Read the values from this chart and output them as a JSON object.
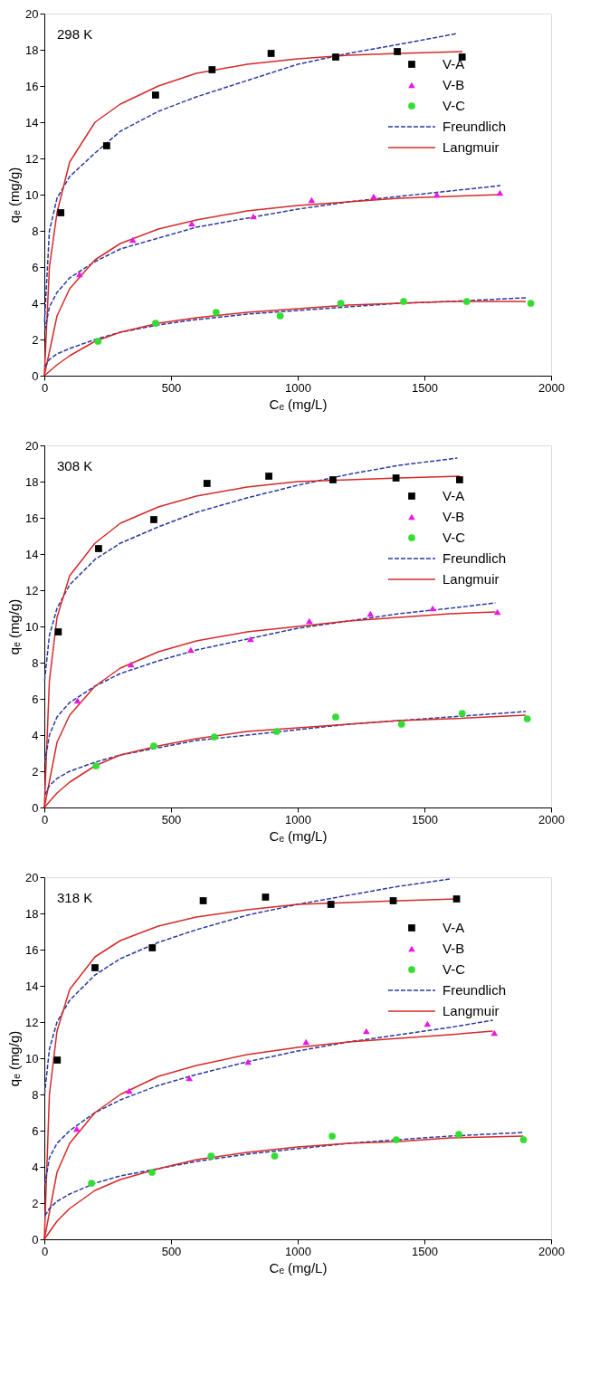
{
  "chart_data": [
    {
      "type": "scatter",
      "annotations": [
        "298 K"
      ],
      "xlabel": "Cₑ (mg/L)",
      "ylabel": "qₑ (mg/g)",
      "xlim": [
        0,
        2000
      ],
      "ylim": [
        0,
        20
      ],
      "xticks": [
        0,
        500,
        1000,
        1500,
        2000
      ],
      "yticks": [
        0,
        2,
        4,
        6,
        8,
        10,
        12,
        14,
        16,
        18,
        20
      ],
      "grid": false,
      "legend": "top right",
      "series": [
        {
          "name": "V-A",
          "marker": "square",
          "color": "#000000",
          "x": [
            65,
            246,
            439,
            662,
            895,
            1150,
            1393,
            1649
          ],
          "values": [
            9.0,
            12.7,
            15.5,
            16.9,
            17.8,
            17.6,
            17.9,
            17.6
          ]
        },
        {
          "name": "V-B",
          "marker": "triangle",
          "color": "#e619e6",
          "x": [
            139,
            349,
            582,
            825,
            1055,
            1300,
            1549,
            1798
          ],
          "values": [
            5.6,
            7.5,
            8.4,
            8.8,
            9.7,
            9.9,
            10.0,
            10.1
          ]
        },
        {
          "name": "V-C",
          "marker": "circle",
          "color": "#33dd33",
          "x": [
            212,
            439,
            678,
            931,
            1170,
            1418,
            1667,
            1920
          ],
          "values": [
            1.9,
            2.9,
            3.5,
            3.3,
            4.0,
            4.1,
            4.1,
            4.0
          ]
        },
        {
          "name": "Freundlich",
          "type": "line",
          "line_style": "dashed",
          "color": "#2b3a9c",
          "x": [
            1,
            20,
            50,
            100,
            200,
            300,
            450,
            600,
            800,
            1000,
            1200,
            1400,
            1630
          ],
          "values": [
            3,
            8,
            9.8,
            11,
            12.3,
            13.5,
            14.6,
            15.4,
            16.3,
            17.2,
            17.8,
            18.3,
            18.9
          ]
        },
        {
          "name": "Langmuir",
          "type": "line",
          "line_style": "solid",
          "color": "#d42a2a",
          "x": [
            0,
            20,
            50,
            100,
            200,
            300,
            450,
            600,
            800,
            1000,
            1200,
            1400,
            1650
          ],
          "values": [
            0,
            6,
            9,
            11.8,
            14,
            15,
            16,
            16.7,
            17.2,
            17.5,
            17.7,
            17.8,
            17.9
          ]
        },
        {
          "type": "line",
          "line_style": "dashed",
          "color": "#2b3a9c",
          "x": [
            2,
            20,
            50,
            100,
            200,
            300,
            450,
            600,
            800,
            1000,
            1200,
            1400,
            1600,
            1800
          ],
          "values": [
            2.5,
            3.8,
            4.6,
            5.4,
            6.3,
            7.0,
            7.6,
            8.2,
            8.7,
            9.2,
            9.6,
            9.9,
            10.2,
            10.5
          ]
        },
        {
          "type": "line",
          "line_style": "solid",
          "color": "#d42a2a",
          "x": [
            0,
            50,
            100,
            200,
            300,
            450,
            600,
            800,
            1000,
            1200,
            1400,
            1600,
            1800
          ],
          "values": [
            0,
            3.3,
            4.8,
            6.4,
            7.3,
            8.1,
            8.6,
            9.1,
            9.4,
            9.6,
            9.8,
            9.9,
            10.0
          ]
        },
        {
          "type": "line",
          "line_style": "dashed",
          "color": "#2b3a9c",
          "x": [
            2,
            20,
            50,
            100,
            200,
            300,
            450,
            600,
            800,
            1000,
            1200,
            1400,
            1600,
            1900
          ],
          "values": [
            0.5,
            0.9,
            1.2,
            1.5,
            2.0,
            2.4,
            2.8,
            3.1,
            3.4,
            3.6,
            3.8,
            4.0,
            4.1,
            4.3
          ]
        },
        {
          "type": "line",
          "line_style": "solid",
          "color": "#d42a2a",
          "x": [
            0,
            50,
            100,
            200,
            300,
            450,
            600,
            800,
            1000,
            1200,
            1400,
            1600,
            1900
          ],
          "values": [
            0,
            0.6,
            1.1,
            1.9,
            2.4,
            2.9,
            3.2,
            3.5,
            3.7,
            3.9,
            4.0,
            4.1,
            4.1
          ]
        }
      ]
    },
    {
      "type": "scatter",
      "annotations": [
        "308 K"
      ],
      "xlabel": "Cₑ (mg/L)",
      "ylabel": "qₑ (mg/g)",
      "xlim": [
        0,
        2000
      ],
      "ylim": [
        0,
        20
      ],
      "xticks": [
        0,
        500,
        1000,
        1500,
        2000
      ],
      "yticks": [
        0,
        2,
        4,
        6,
        8,
        10,
        12,
        14,
        16,
        18,
        20
      ],
      "grid": false,
      "legend": "top right",
      "series": [
        {
          "name": "V-A",
          "marker": "square",
          "color": "#000000",
          "x": [
            55,
            214,
            432,
            642,
            886,
            1139,
            1388,
            1639
          ],
          "values": [
            9.7,
            14.3,
            15.9,
            17.9,
            18.3,
            18.1,
            18.2,
            18.1
          ]
        },
        {
          "name": "V-B",
          "marker": "triangle",
          "color": "#e619e6",
          "x": [
            131,
            342,
            578,
            814,
            1046,
            1287,
            1533,
            1788
          ],
          "values": [
            5.9,
            7.9,
            8.7,
            9.3,
            10.3,
            10.7,
            11.0,
            10.8
          ]
        },
        {
          "name": "V-C",
          "marker": "circle",
          "color": "#33dd33",
          "x": [
            204,
            432,
            671,
            917,
            1150,
            1410,
            1649,
            1906
          ],
          "values": [
            2.3,
            3.4,
            3.9,
            4.2,
            5.0,
            4.6,
            5.2,
            4.9
          ]
        },
        {
          "name": "Freundlich",
          "type": "line",
          "line_style": "dashed",
          "color": "#2b3a9c",
          "x": [
            1,
            20,
            50,
            100,
            200,
            300,
            450,
            600,
            800,
            1000,
            1200,
            1400,
            1630
          ],
          "values": [
            7,
            9.5,
            11,
            12.3,
            13.7,
            14.6,
            15.5,
            16.3,
            17.1,
            17.8,
            18.4,
            18.9,
            19.3
          ]
        },
        {
          "name": "Langmuir",
          "type": "line",
          "line_style": "solid",
          "color": "#d42a2a",
          "x": [
            0,
            20,
            50,
            100,
            200,
            300,
            450,
            600,
            800,
            1000,
            1200,
            1400,
            1640
          ],
          "values": [
            0,
            7,
            10.5,
            12.8,
            14.6,
            15.7,
            16.6,
            17.2,
            17.7,
            18.0,
            18.1,
            18.2,
            18.3
          ]
        },
        {
          "type": "line",
          "line_style": "dashed",
          "color": "#2b3a9c",
          "x": [
            2,
            20,
            50,
            100,
            200,
            300,
            450,
            600,
            800,
            1000,
            1200,
            1400,
            1600,
            1780
          ],
          "values": [
            2.5,
            4,
            5,
            5.8,
            6.7,
            7.4,
            8.1,
            8.7,
            9.3,
            9.9,
            10.3,
            10.7,
            11.0,
            11.3
          ]
        },
        {
          "type": "line",
          "line_style": "solid",
          "color": "#d42a2a",
          "x": [
            0,
            50,
            100,
            200,
            300,
            450,
            600,
            800,
            1000,
            1200,
            1400,
            1600,
            1780
          ],
          "values": [
            0,
            3.6,
            5.1,
            6.7,
            7.7,
            8.6,
            9.2,
            9.7,
            10.0,
            10.3,
            10.5,
            10.7,
            10.8
          ]
        },
        {
          "type": "line",
          "line_style": "dashed",
          "color": "#2b3a9c",
          "x": [
            2,
            20,
            50,
            100,
            200,
            300,
            450,
            600,
            800,
            1000,
            1200,
            1400,
            1600,
            1900
          ],
          "values": [
            0.7,
            1.2,
            1.6,
            2.0,
            2.5,
            2.9,
            3.3,
            3.7,
            4.0,
            4.3,
            4.6,
            4.8,
            5.0,
            5.3
          ]
        },
        {
          "type": "line",
          "line_style": "solid",
          "color": "#d42a2a",
          "x": [
            0,
            50,
            100,
            200,
            300,
            450,
            600,
            800,
            1000,
            1200,
            1400,
            1600,
            1900
          ],
          "values": [
            0,
            0.8,
            1.4,
            2.3,
            2.9,
            3.4,
            3.8,
            4.2,
            4.4,
            4.6,
            4.8,
            4.9,
            5.1
          ]
        }
      ]
    },
    {
      "type": "scatter",
      "annotations": [
        "318 K"
      ],
      "xlabel": "Cₑ (mg/L)",
      "ylabel": "qₑ (mg/g)",
      "xlim": [
        0,
        2000
      ],
      "ylim": [
        0,
        20
      ],
      "xticks": [
        0,
        500,
        1000,
        1500,
        2000
      ],
      "yticks": [
        0,
        2,
        4,
        6,
        8,
        10,
        12,
        14,
        16,
        18,
        20
      ],
      "grid": false,
      "legend": "top right",
      "series": [
        {
          "name": "V-A",
          "marker": "square",
          "color": "#000000",
          "x": [
            51,
            200,
            426,
            627,
            873,
            1131,
            1377,
            1627
          ],
          "values": [
            9.9,
            15.0,
            16.1,
            18.7,
            18.9,
            18.5,
            18.7,
            18.8
          ]
        },
        {
          "name": "V-B",
          "marker": "triangle",
          "color": "#e619e6",
          "x": [
            128,
            335,
            572,
            804,
            1033,
            1271,
            1512,
            1776
          ],
          "values": [
            6.1,
            8.2,
            8.9,
            9.8,
            10.9,
            11.5,
            11.9,
            11.4
          ]
        },
        {
          "name": "V-C",
          "marker": "circle",
          "color": "#33dd33",
          "x": [
            186,
            425,
            658,
            909,
            1136,
            1389,
            1636,
            1891
          ],
          "values": [
            3.1,
            3.7,
            4.6,
            4.6,
            5.7,
            5.5,
            5.8,
            5.5
          ]
        },
        {
          "name": "Freundlich",
          "type": "line",
          "line_style": "dashed",
          "color": "#2b3a9c",
          "x": [
            1,
            20,
            50,
            100,
            200,
            300,
            450,
            600,
            800,
            1000,
            1200,
            1400,
            1600
          ],
          "values": [
            8,
            10.5,
            12,
            13.2,
            14.6,
            15.5,
            16.4,
            17.1,
            17.9,
            18.5,
            19.0,
            19.5,
            19.9
          ]
        },
        {
          "name": "Langmuir",
          "type": "line",
          "line_style": "solid",
          "color": "#d42a2a",
          "x": [
            0,
            20,
            50,
            100,
            200,
            300,
            450,
            600,
            800,
            1000,
            1200,
            1400,
            1630
          ],
          "values": [
            0,
            8,
            11.5,
            13.8,
            15.6,
            16.5,
            17.3,
            17.8,
            18.2,
            18.5,
            18.6,
            18.7,
            18.8
          ]
        },
        {
          "type": "line",
          "line_style": "dashed",
          "color": "#2b3a9c",
          "x": [
            2,
            20,
            50,
            100,
            200,
            300,
            450,
            600,
            800,
            1000,
            1200,
            1400,
            1600,
            1770
          ],
          "values": [
            3,
            4.5,
            5.3,
            6.0,
            7.0,
            7.7,
            8.5,
            9.1,
            9.8,
            10.4,
            10.9,
            11.3,
            11.7,
            12.1
          ]
        },
        {
          "type": "line",
          "line_style": "solid",
          "color": "#d42a2a",
          "x": [
            0,
            50,
            100,
            200,
            300,
            450,
            600,
            800,
            1000,
            1200,
            1400,
            1600,
            1770
          ],
          "values": [
            0,
            3.7,
            5.3,
            7.0,
            8.0,
            9.0,
            9.6,
            10.2,
            10.6,
            10.9,
            11.1,
            11.3,
            11.5
          ]
        },
        {
          "type": "line",
          "line_style": "dashed",
          "color": "#2b3a9c",
          "x": [
            2,
            20,
            50,
            100,
            200,
            300,
            450,
            600,
            800,
            1000,
            1200,
            1400,
            1600,
            1890
          ],
          "values": [
            1.3,
            1.7,
            2.1,
            2.5,
            3.1,
            3.5,
            3.9,
            4.3,
            4.7,
            5.0,
            5.3,
            5.5,
            5.7,
            5.9
          ]
        },
        {
          "type": "line",
          "line_style": "solid",
          "color": "#d42a2a",
          "x": [
            0,
            50,
            100,
            200,
            300,
            450,
            600,
            800,
            1000,
            1200,
            1400,
            1600,
            1890
          ],
          "values": [
            0,
            1.0,
            1.7,
            2.7,
            3.3,
            3.9,
            4.4,
            4.8,
            5.1,
            5.3,
            5.4,
            5.6,
            5.7
          ]
        }
      ]
    }
  ]
}
